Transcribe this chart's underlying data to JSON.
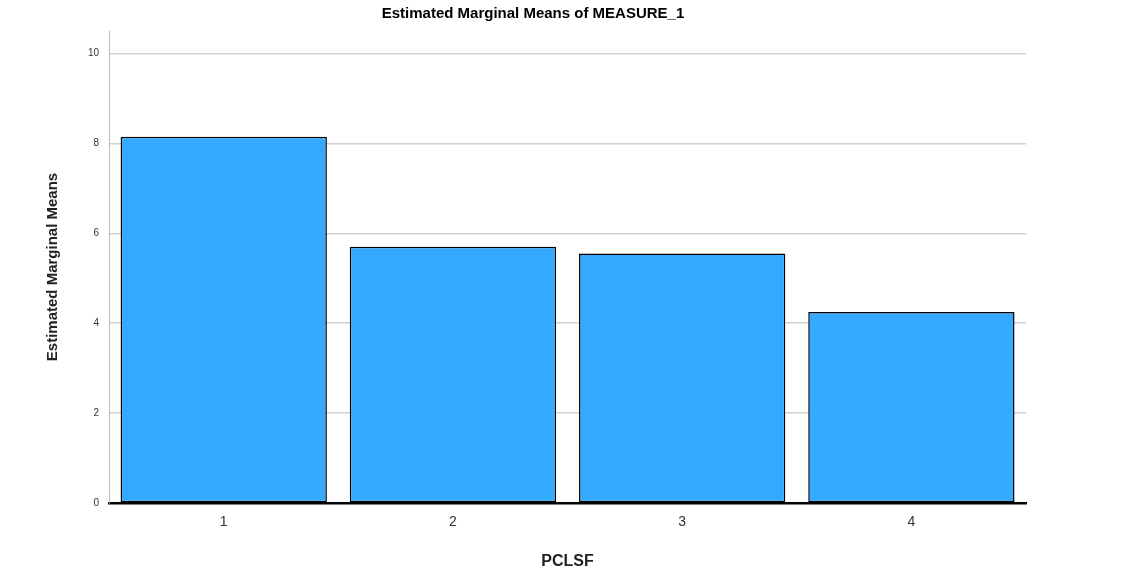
{
  "chart_data": {
    "type": "bar",
    "title": "Estimated Marginal Means of MEASURE_1",
    "xlabel": "PCLSF",
    "ylabel": "Estimated Marginal Means",
    "categories": [
      "1",
      "2",
      "3",
      "4"
    ],
    "values": [
      8.15,
      5.7,
      5.55,
      4.25
    ],
    "color": "#33aaff",
    "ylim": [
      0,
      10.5
    ],
    "yticks": [
      0,
      2,
      4,
      6,
      8,
      10
    ],
    "grid": "y",
    "legend": false
  }
}
